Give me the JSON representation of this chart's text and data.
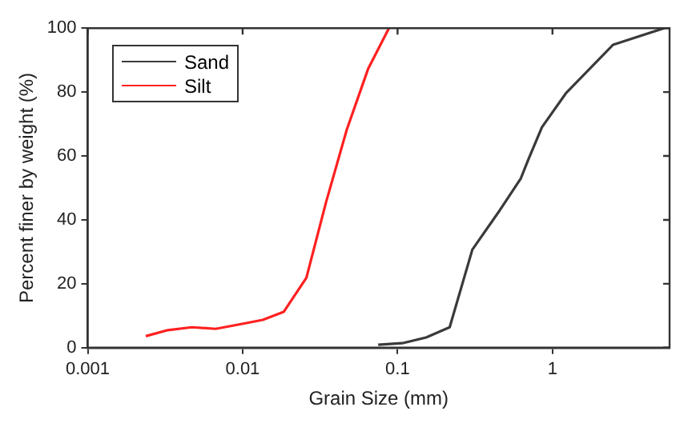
{
  "chart_data": {
    "type": "line",
    "xlabel": "Grain Size (mm)",
    "ylabel": "Percent finer by weight (%)",
    "log": "x",
    "xlim": [
      0.001,
      5.7
    ],
    "xticks": [
      0.001,
      0.01,
      0.1,
      1
    ],
    "ylim": [
      0,
      100
    ],
    "yticks": [
      0,
      20,
      40,
      60,
      80,
      100
    ],
    "grid": false,
    "legend": "top left",
    "marker": "none",
    "line_style": "solid",
    "series": [
      {
        "name": "Sand",
        "color": "#3a3a3a",
        "x": [
          0.075,
          0.107,
          0.153,
          0.217,
          0.304,
          0.457,
          0.625,
          0.7,
          0.855,
          1.22,
          2.46,
          5.26
        ],
        "values": [
          0.9,
          1.4,
          3.2,
          6.4,
          30.7,
          43,
          53,
          59,
          69,
          79.6,
          94.8,
          100
        ]
      },
      {
        "name": "Silt",
        "color": "#ff2020",
        "x": [
          0.00237,
          0.0033,
          0.0047,
          0.0067,
          0.0098,
          0.0135,
          0.0184,
          0.0258,
          0.0345,
          0.047,
          0.0645,
          0.088
        ],
        "values": [
          3.6,
          5.5,
          6.4,
          5.9,
          7.4,
          8.7,
          11.2,
          21.9,
          45.4,
          68.2,
          87.2,
          100
        ]
      }
    ]
  }
}
